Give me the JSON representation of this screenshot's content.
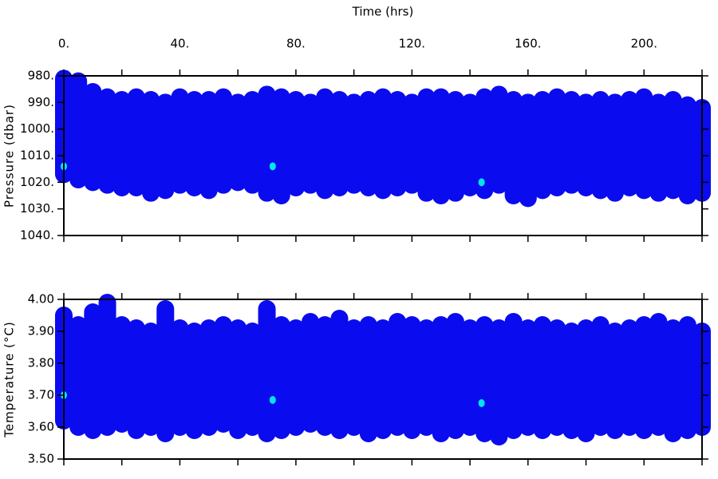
{
  "chart_data": [
    {
      "type": "range",
      "xlabel": "Time (hrs)",
      "ylabel": "Pressure (dbar)",
      "xlim": [
        0,
        220
      ],
      "y_inverted": true,
      "ylim": [
        980,
        1040
      ],
      "xticks": [
        {
          "value": 0,
          "label": "0."
        },
        {
          "value": 40,
          "label": "40."
        },
        {
          "value": 80,
          "label": "80."
        },
        {
          "value": 120,
          "label": "120."
        },
        {
          "value": 160,
          "label": "160."
        },
        {
          "value": 200,
          "label": "200."
        }
      ],
      "xminorticks": [
        20,
        60,
        100,
        140,
        180,
        220
      ],
      "yticks": [
        {
          "value": 980,
          "label": "980."
        },
        {
          "value": 990,
          "label": "990."
        },
        {
          "value": 1000,
          "label": "1000."
        },
        {
          "value": 1010,
          "label": "1010."
        },
        {
          "value": 1020,
          "label": "1020."
        },
        {
          "value": 1030,
          "label": "1030."
        },
        {
          "value": 1040,
          "label": "1040."
        }
      ],
      "x": [
        0,
        5,
        10,
        15,
        20,
        25,
        30,
        35,
        40,
        45,
        50,
        55,
        60,
        65,
        70,
        75,
        80,
        85,
        90,
        95,
        100,
        105,
        110,
        115,
        120,
        125,
        130,
        135,
        140,
        145,
        150,
        155,
        160,
        165,
        170,
        175,
        180,
        185,
        190,
        195,
        200,
        205,
        210,
        215,
        220
      ],
      "color": "#0b0bef",
      "low": [
        981,
        982,
        986,
        988,
        989,
        988,
        989,
        990,
        988,
        989,
        989,
        988,
        990,
        989,
        987,
        988,
        989,
        990,
        988,
        989,
        990,
        989,
        988,
        989,
        990,
        988,
        988,
        989,
        990,
        988,
        987,
        989,
        990,
        989,
        988,
        989,
        990,
        989,
        990,
        989,
        988,
        990,
        989,
        991,
        992
      ],
      "high": [
        1017,
        1019,
        1020,
        1021,
        1022,
        1022,
        1024,
        1023,
        1021,
        1022,
        1023,
        1021,
        1020,
        1021,
        1024,
        1025,
        1022,
        1021,
        1023,
        1022,
        1021,
        1022,
        1023,
        1022,
        1021,
        1024,
        1025,
        1024,
        1022,
        1023,
        1021,
        1025,
        1026,
        1023,
        1022,
        1021,
        1022,
        1023,
        1024,
        1022,
        1023,
        1024,
        1023,
        1025,
        1024
      ],
      "points": {
        "color": "#00e5ee",
        "x": [
          0,
          72,
          144
        ],
        "values": [
          1014,
          1014,
          1020
        ]
      }
    },
    {
      "type": "range",
      "ylabel": "Temperature (°C)",
      "xlim": [
        0,
        220
      ],
      "ylim": [
        3.5,
        4.0
      ],
      "xminorticks": [
        0,
        20,
        40,
        60,
        80,
        100,
        120,
        140,
        160,
        180,
        200,
        220
      ],
      "yticks": [
        {
          "value": 3.5,
          "label": "3.50"
        },
        {
          "value": 3.6,
          "label": "3.60"
        },
        {
          "value": 3.7,
          "label": "3.70"
        },
        {
          "value": 3.8,
          "label": "3.80"
        },
        {
          "value": 3.9,
          "label": "3.90"
        },
        {
          "value": 4.0,
          "label": "4.00"
        }
      ],
      "x": [
        0,
        5,
        10,
        15,
        20,
        25,
        30,
        35,
        40,
        45,
        50,
        55,
        60,
        65,
        70,
        75,
        80,
        85,
        90,
        95,
        100,
        105,
        110,
        115,
        120,
        125,
        130,
        135,
        140,
        145,
        150,
        155,
        160,
        165,
        170,
        175,
        180,
        185,
        190,
        195,
        200,
        205,
        210,
        215,
        220
      ],
      "color": "#0b0bef",
      "low": [
        3.62,
        3.6,
        3.59,
        3.6,
        3.61,
        3.59,
        3.6,
        3.58,
        3.6,
        3.59,
        3.6,
        3.61,
        3.59,
        3.6,
        3.58,
        3.59,
        3.6,
        3.61,
        3.6,
        3.59,
        3.6,
        3.58,
        3.59,
        3.6,
        3.59,
        3.6,
        3.58,
        3.59,
        3.6,
        3.58,
        3.57,
        3.59,
        3.6,
        3.59,
        3.6,
        3.59,
        3.58,
        3.6,
        3.59,
        3.6,
        3.59,
        3.6,
        3.58,
        3.59,
        3.6
      ],
      "high": [
        3.95,
        3.92,
        3.96,
        3.99,
        3.92,
        3.91,
        3.9,
        3.97,
        3.91,
        3.9,
        3.91,
        3.92,
        3.91,
        3.9,
        3.97,
        3.92,
        3.91,
        3.93,
        3.92,
        3.94,
        3.91,
        3.92,
        3.91,
        3.93,
        3.92,
        3.91,
        3.92,
        3.93,
        3.91,
        3.92,
        3.91,
        3.93,
        3.91,
        3.92,
        3.91,
        3.9,
        3.91,
        3.92,
        3.9,
        3.91,
        3.92,
        3.93,
        3.91,
        3.92,
        3.9
      ],
      "points": {
        "color": "#00e5ee",
        "x": [
          0,
          72,
          144
        ],
        "values": [
          3.7,
          3.685,
          3.675
        ]
      }
    }
  ]
}
